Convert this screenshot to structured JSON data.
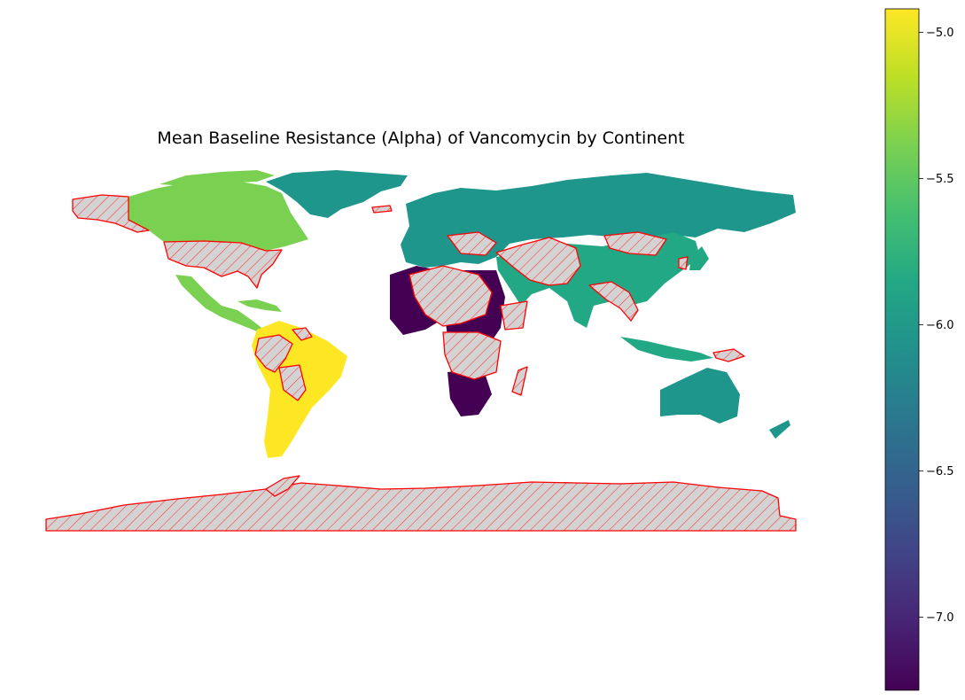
{
  "chart_data": {
    "type": "choropleth",
    "title": "Mean Baseline Resistance (Alpha) of Vancomycin by Continent",
    "colormap": "viridis",
    "missing_style": {
      "fill": "#d3d3d3",
      "hatch": "////",
      "edge": "#ff0000"
    },
    "colorbar": {
      "min": -7.25,
      "max": -4.92,
      "ticks": [
        -5.0,
        -5.5,
        -6.0,
        -6.5,
        -7.0
      ],
      "tick_labels": [
        "−5.0",
        "−5.5",
        "−6.0",
        "−6.5",
        "−7.0"
      ]
    },
    "regions": [
      {
        "name": "North America",
        "value": -5.3,
        "color": "#7ad151"
      },
      {
        "name": "South America",
        "value": -4.92,
        "color": "#fde725"
      },
      {
        "name": "Europe",
        "value": -6.0,
        "color": "#1f968b"
      },
      {
        "name": "Oceania",
        "value": -6.0,
        "color": "#1f968b"
      },
      {
        "name": "Asia",
        "value": -5.8,
        "color": "#22a884"
      },
      {
        "name": "Africa",
        "value": -7.25,
        "color": "#440154"
      },
      {
        "name": "Antarctica",
        "value": null,
        "color": "missing"
      }
    ]
  }
}
